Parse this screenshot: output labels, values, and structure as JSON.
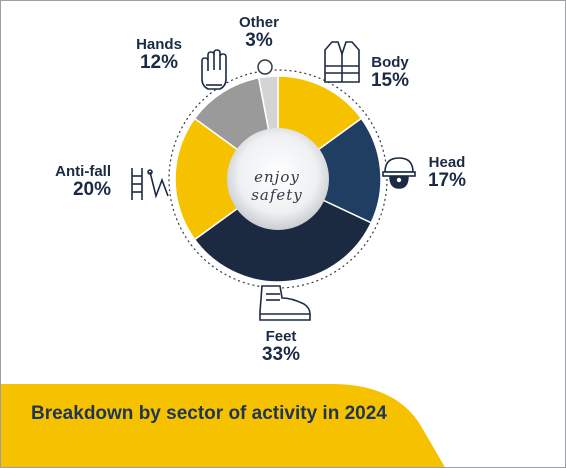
{
  "colors": {
    "yellow": "#f6c200",
    "navy": "#1b2a40",
    "blue": "#1f3e62",
    "gray": "#9a9a9a",
    "light_gray": "#d4d4d4",
    "text": "#1b2b44"
  },
  "center_text": "enjoy safety",
  "banner_title": "Breakdown by sector of activity in 2024",
  "chart_data": {
    "type": "pie",
    "title": "Breakdown by sector of activity in 2024",
    "slices": [
      {
        "label": "Body",
        "value": 15,
        "display": "15%",
        "color": "#f6c200",
        "icon": "safety-vest-icon"
      },
      {
        "label": "Head",
        "value": 17,
        "display": "17%",
        "color": "#1f3e62",
        "icon": "hard-hat-icon"
      },
      {
        "label": "Feet",
        "value": 33,
        "display": "33%",
        "color": "#1b2a40",
        "icon": "safety-boot-icon"
      },
      {
        "label": "Anti-fall",
        "value": 20,
        "display": "20%",
        "color": "#f6c200",
        "icon": "fall-protection-icon"
      },
      {
        "label": "Hands",
        "value": 12,
        "display": "12%",
        "color": "#9a9a9a",
        "icon": "glove-icon"
      },
      {
        "label": "Other",
        "value": 3,
        "display": "3%",
        "color": "#d4d4d4",
        "icon": "circle-icon"
      }
    ],
    "start_angle_deg": 0,
    "donut": true
  }
}
